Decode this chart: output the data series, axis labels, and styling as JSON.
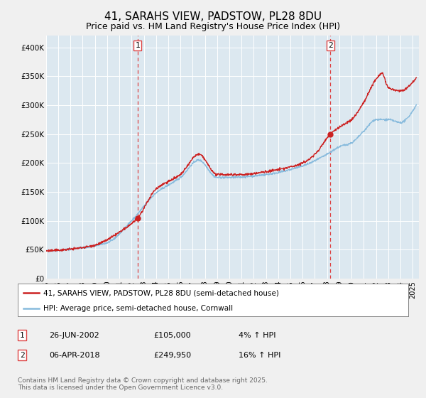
{
  "title": "41, SARAHS VIEW, PADSTOW, PL28 8DU",
  "subtitle": "Price paid vs. HM Land Registry's House Price Index (HPI)",
  "title_fontsize": 11,
  "subtitle_fontsize": 9,
  "bg_color": "#f0f0f0",
  "plot_bg_color": "#dce8f0",
  "grid_color": "#ffffff",
  "hpi_color": "#88bbdd",
  "price_color": "#cc2222",
  "marker_color": "#cc2222",
  "vline_color": "#dd4444",
  "ylim": [
    0,
    420000
  ],
  "yticks": [
    0,
    50000,
    100000,
    150000,
    200000,
    250000,
    300000,
    350000,
    400000
  ],
  "ytick_labels": [
    "£0",
    "£50K",
    "£100K",
    "£150K",
    "£200K",
    "£250K",
    "£300K",
    "£350K",
    "£400K"
  ],
  "sale1_x": 2002.49,
  "sale1_y": 105000,
  "sale1_label": "1",
  "sale2_x": 2018.27,
  "sale2_y": 249950,
  "sale2_label": "2",
  "legend_line1": "41, SARAHS VIEW, PADSTOW, PL28 8DU (semi-detached house)",
  "legend_line2": "HPI: Average price, semi-detached house, Cornwall",
  "table_row1": [
    "1",
    "26-JUN-2002",
    "£105,000",
    "4% ↑ HPI"
  ],
  "table_row2": [
    "2",
    "06-APR-2018",
    "£249,950",
    "16% ↑ HPI"
  ],
  "footnote": "Contains HM Land Registry data © Crown copyright and database right 2025.\nThis data is licensed under the Open Government Licence v3.0.",
  "xmin": 1995,
  "xmax": 2025.5
}
